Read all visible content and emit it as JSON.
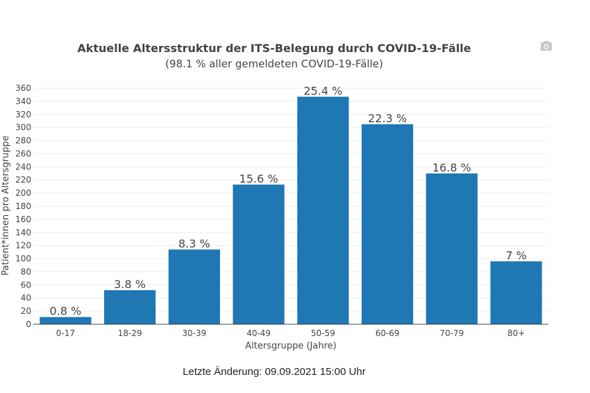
{
  "chart_data": {
    "type": "bar",
    "title": "Aktuelle Altersstruktur der ITS-Belegung durch COVID-19-Fälle",
    "subtitle": "(98.1 % aller gemeldeten COVID-19-Fälle)",
    "xlabel": "Altersgruppe (Jahre)",
    "ylabel": "Patient*innen pro Altersgruppe",
    "categories": [
      "0-17",
      "18-29",
      "30-39",
      "40-49",
      "50-59",
      "60-69",
      "70-79",
      "80+"
    ],
    "values": [
      11,
      52,
      114,
      213,
      347,
      305,
      230,
      96
    ],
    "data_labels": [
      "0.8 %",
      "3.8 %",
      "8.3 %",
      "15.6 %",
      "25.4 %",
      "22.3 %",
      "16.8 %",
      "7 %"
    ],
    "ylim": [
      0,
      360
    ],
    "yticks": [
      0,
      20,
      40,
      60,
      80,
      100,
      120,
      140,
      160,
      180,
      200,
      220,
      240,
      260,
      280,
      300,
      320,
      340,
      360
    ],
    "grid": true,
    "bar_color": "#1f77b4"
  },
  "toolbar": {
    "camera_icon": "camera-icon"
  },
  "footer": {
    "last_change": "Letzte Änderung: 09.09.2021 15:00 Uhr"
  }
}
